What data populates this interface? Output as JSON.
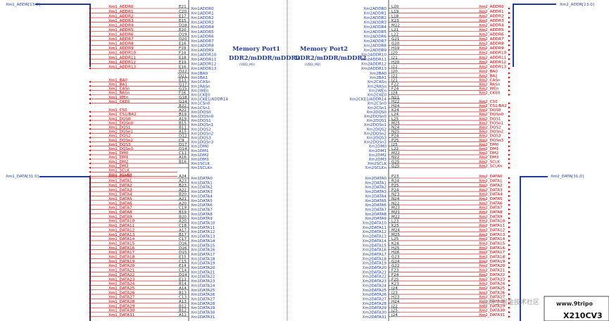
{
  "port1": {
    "title": "Memory Port1",
    "subtitle": "DDR2/mDDR/mDDR2",
    "supply": "(VDD_M1)",
    "addr_bus": "Xm1_ADDR[13:0]",
    "data_bus": "Xm1_DATA[31:0]",
    "addr": [
      {
        "net": "Xm1_ADDR0",
        "pin": "E21",
        "sig": "Xm1ADDR0"
      },
      {
        "net": "Xm1_ADDR1",
        "pin": "C20",
        "sig": "Xm1ADDR1"
      },
      {
        "net": "Xm1_ADDR2",
        "pin": "E17",
        "sig": "Xm1ADDR2"
      },
      {
        "net": "Xm1_ADDR3",
        "pin": "E15",
        "sig": "Xm1ADDR3"
      },
      {
        "net": "Xm1_ADDR4",
        "pin": "D18",
        "sig": "Xm1ADDR4"
      },
      {
        "net": "Xm1_ADDR5",
        "pin": "E20",
        "sig": "Xm1ADDR5"
      },
      {
        "net": "Xm1_ADDR6",
        "pin": "D19",
        "sig": "Xm1ADDR6"
      },
      {
        "net": "Xm1_ADDR7",
        "pin": "D20",
        "sig": "Xm1ADDR7"
      },
      {
        "net": "Xm1_ADDR8",
        "pin": "E16",
        "sig": "Xm1ADDR8"
      },
      {
        "net": "Xm1_ADDR9",
        "pin": "F19",
        "sig": "Xm1ADDR9"
      },
      {
        "net": "Xm1_ADDR10",
        "pin": "F14",
        "sig": "Xm1ADDR10"
      },
      {
        "net": "Xm1_ADDR11",
        "pin": "E18",
        "sig": "Xm1ADDR11"
      },
      {
        "net": "Xm1_ADDR12",
        "pin": "E19",
        "sig": "Xm1ADDR12"
      },
      {
        "net": "Xm1_ADDR13",
        "pin": "E16",
        "sig": "Xm1ADDR13"
      }
    ],
    "ctrl": [
      {
        "net": "",
        "pin": "D22",
        "sig": "Xm1BA0"
      },
      {
        "net": "",
        "pin": "D21",
        "sig": "Xm1BA1"
      },
      {
        "net": "Xm1_BA0",
        "pin": "E13",
        "sig": "Xm1CASn"
      },
      {
        "net": "Xm1_BA1",
        "pin": "G17",
        "sig": "Xm1RASn"
      },
      {
        "net": "Xm1_CASn",
        "pin": "G15",
        "sig": "Xm1WEn"
      },
      {
        "net": "Xm1_RASn",
        "pin": "F16",
        "sig": "Xm1CKE0"
      },
      {
        "net": "Xm1_WEn",
        "pin": "G18",
        "sig": "Xm1CKE1/ADDR14"
      },
      {
        "net": "Xm1_CKE0",
        "pin": "G14",
        "sig": "Xm1CSn0"
      },
      {
        "net": "",
        "pin": "B22",
        "sig": "Xm1CSn1"
      },
      {
        "net": "Xm1_CS0",
        "pin": "A22",
        "sig": "Xm1DQS0"
      },
      {
        "net": "Xm1_CS1/BA2",
        "pin": "B19",
        "sig": "Xm1DQSn0"
      },
      {
        "net": "Xm1_DQS0",
        "pin": "A19",
        "sig": "Xm1DQS1"
      },
      {
        "net": "Xm1_DQSn0",
        "pin": "B15",
        "sig": "Xm1DQSn1"
      },
      {
        "net": "Xm1_DQS1",
        "pin": "B11",
        "sig": "Xm1DQS2"
      },
      {
        "net": "Xm1_DQSn1",
        "pin": "A15",
        "sig": "Xm1DQSn2"
      },
      {
        "net": "Xm1_DQS2",
        "pin": "D12",
        "sig": "Xm1DQS3"
      },
      {
        "net": "Xm1_DQSn2",
        "pin": "C9",
        "sig": "Xm1DQSn3"
      },
      {
        "net": "Xm1_DQS3",
        "pin": "D17",
        "sig": "Xm1DM0"
      },
      {
        "net": "Xm1_DQSn3",
        "pin": "D14",
        "sig": "Xm1DM1"
      },
      {
        "net": "Xm1_DM0",
        "pin": "C11",
        "sig": "Xm1DM2"
      },
      {
        "net": "Xm1_DM1",
        "pin": "A16",
        "sig": "Xm1DM3"
      },
      {
        "net": "Xm1_DM2",
        "pin": "B16",
        "sig": "Xm1SCLK"
      },
      {
        "net": "Xm1_DM3",
        "pin": "",
        "sig": "Xm1SCLKn"
      },
      {
        "net": "Xm1_SCLK",
        "pin": "",
        "sig": ""
      },
      {
        "net": "Xm1_SCLKn",
        "pin": "",
        "sig": ""
      }
    ],
    "data": [
      {
        "net": "Xm1_DATA0",
        "pin": "A24",
        "sig": "Xm1DATA0"
      },
      {
        "net": "Xm1_DATA1",
        "pin": "A23",
        "sig": "Xm1DATA1"
      },
      {
        "net": "Xm1_DATA2",
        "pin": "B23",
        "sig": "Xm1DATA2"
      },
      {
        "net": "Xm1_DATA3",
        "pin": "A22",
        "sig": "Xm1DATA3"
      },
      {
        "net": "Xm1_DATA4",
        "pin": "B20",
        "sig": "Xm1DATA4"
      },
      {
        "net": "Xm1_DATA5",
        "pin": "A21",
        "sig": "Xm1DATA5"
      },
      {
        "net": "Xm1_DATA6",
        "pin": "A20",
        "sig": "Xm1DATA6"
      },
      {
        "net": "Xm1_DATA7",
        "pin": "C19",
        "sig": "Xm1DATA7"
      },
      {
        "net": "Xm1_DATA8",
        "pin": "B19",
        "sig": "Xm1DATA8"
      },
      {
        "net": "Xm1_DATA9",
        "pin": "B20",
        "sig": "Xm1DATA9"
      },
      {
        "net": "Xm1_DATA10",
        "pin": "A20",
        "sig": "Xm1DATA10"
      },
      {
        "net": "Xm1_DATA11",
        "pin": "C18",
        "sig": "Xm1DATA11"
      },
      {
        "net": "Xm1_DATA12",
        "pin": "A17",
        "sig": "Xm1DATA12"
      },
      {
        "net": "Xm1_DATA13",
        "pin": "B17",
        "sig": "Xm1DATA13"
      },
      {
        "net": "Xm1_DATA14",
        "pin": "C17",
        "sig": "Xm1DATA14"
      },
      {
        "net": "Xm1_DATA15",
        "pin": "D16",
        "sig": "Xm1DATA15"
      },
      {
        "net": "Xm1_DATA16",
        "pin": "D16",
        "sig": "Xm1DATA16"
      },
      {
        "net": "Xm1_DATA17",
        "pin": "D15",
        "sig": "Xm1DATA17"
      },
      {
        "net": "Xm1_DATA18",
        "pin": "E15",
        "sig": "Xm1DATA18"
      },
      {
        "net": "Xm1_DATA19",
        "pin": "C15",
        "sig": "Xm1DATA19"
      },
      {
        "net": "Xm1_DATA20",
        "pin": "E14",
        "sig": "Xm1DATA20"
      },
      {
        "net": "Xm1_DATA21",
        "pin": "C14",
        "sig": "Xm1DATA21"
      },
      {
        "net": "Xm1_DATA22",
        "pin": "D14",
        "sig": "Xm1DATA22"
      },
      {
        "net": "Xm1_DATA23",
        "pin": "E13",
        "sig": "Xm1DATA23"
      },
      {
        "net": "Xm1_DATA24",
        "pin": "B14",
        "sig": "Xm1DATA24"
      },
      {
        "net": "Xm1_DATA25",
        "pin": "A14",
        "sig": "Xm1DATA25"
      },
      {
        "net": "Xm1_DATA26",
        "pin": "B13",
        "sig": "Xm1DATA26"
      },
      {
        "net": "Xm1_DATA27",
        "pin": "C13",
        "sig": "Xm1DATA27"
      },
      {
        "net": "Xm1_DATA28",
        "pin": "A13",
        "sig": "Xm1DATA28"
      },
      {
        "net": "Xm1_DATA29",
        "pin": "B12",
        "sig": "Xm1DATA29"
      },
      {
        "net": "Xm1_DATA30",
        "pin": "B12",
        "sig": "Xm1DATA30"
      },
      {
        "net": "Xm1_DATA31",
        "pin": "A12",
        "sig": "Xm1DATA31"
      }
    ]
  },
  "port2": {
    "title": "Memory Port2",
    "subtitle": "DDR2/mDDR/mDDR2",
    "supply": "(VDD_M2)",
    "addr_bus": "Xm2_ADDR[13:0]",
    "data_bus": "Xm2_DATA[31:0]",
    "addr": [
      {
        "net": "Xm2_ADDR0",
        "pin": "L20",
        "sig": "Xm2ADDR0"
      },
      {
        "net": "Xm2_ADDR1",
        "pin": "L19",
        "sig": "Xm2ADDR1"
      },
      {
        "net": "Xm2_ADDR2",
        "pin": "L18",
        "sig": "Xm2ADDR2"
      },
      {
        "net": "Xm2_ADDR3",
        "pin": "K23",
        "sig": "Xm2ADDR3"
      },
      {
        "net": "Xm2_ADDR4",
        "pin": "M22",
        "sig": "Xm2ADDR4"
      },
      {
        "net": "Xm2_ADDR5",
        "pin": "L21",
        "sig": "Xm2ADDR5"
      },
      {
        "net": "Xm2_ADDR6",
        "pin": "L22",
        "sig": "Xm2ADDR6"
      },
      {
        "net": "Xm2_ADDR7",
        "pin": "G21",
        "sig": "Xm2ADDR7"
      },
      {
        "net": "Xm2_ADDR8",
        "pin": "G20",
        "sig": "Xm2ADDR8"
      },
      {
        "net": "Xm2_ADDR9",
        "pin": "H19",
        "sig": "Xm2ADDR9"
      },
      {
        "net": "Xm2_ADDR10",
        "pin": "J20",
        "sig": "Xm2ADDR10"
      },
      {
        "net": "Xm2_ADDR11",
        "pin": "J21",
        "sig": "Xm2ADDR11"
      },
      {
        "net": "Xm2_ADDR12",
        "pin": "H20",
        "sig": "Xm2ADDR12"
      },
      {
        "net": "Xm2_ADDR13",
        "pin": "J22",
        "sig": "Xm2ADDR13"
      }
    ],
    "ctrl": [
      {
        "net": "Xm2_BA0",
        "pin": "J20",
        "sig": "Xm2BA0"
      },
      {
        "net": "Xm2_BA1",
        "pin": "J22",
        "sig": "Xm2BA1"
      },
      {
        "net": "Xm2_CASn",
        "pin": "J21",
        "sig": "Xm2CASn"
      },
      {
        "net": "Xm2_RASn",
        "pin": "F22",
        "sig": "Xm2RASn"
      },
      {
        "net": "Xm2_WEn",
        "pin": "F24",
        "sig": "Xm2WEn"
      },
      {
        "net": "Xm2_CKE0",
        "pin": "J24",
        "sig": "Xm2CKE0"
      },
      {
        "net": "",
        "pin": "N21",
        "sig": "Xm2CKE1/ADDR14"
      },
      {
        "net": "Xm2_CS0",
        "pin": "H22",
        "sig": "Xm2CSn0"
      },
      {
        "net": "Xm2_CS1/BA2",
        "pin": "H24",
        "sig": "Xm2CSn1"
      },
      {
        "net": "Xm2_DQS0",
        "pin": "K24",
        "sig": "Xm2DQS0"
      },
      {
        "net": "Xm2_DQSn0",
        "pin": "L24",
        "sig": "Xm2DQSn0"
      },
      {
        "net": "Xm2_DQS1",
        "pin": "L25",
        "sig": "Xm2DQS1"
      },
      {
        "net": "Xm2_DQSn1",
        "pin": "M25",
        "sig": "Xm2DQSn1"
      },
      {
        "net": "Xm2_DQS2",
        "pin": "N24",
        "sig": "Xm2DQS2"
      },
      {
        "net": "Xm2_DQSn2",
        "pin": "N25",
        "sig": "Xm2DQSn2"
      },
      {
        "net": "Xm2_DQS3",
        "pin": "P24",
        "sig": "Xm2DQS3"
      },
      {
        "net": "Xm2_DQSn3",
        "pin": "P25",
        "sig": "Xm2DQSn3"
      },
      {
        "net": "Xm2_DM0",
        "pin": "J25",
        "sig": "Xm2DM0"
      },
      {
        "net": "Xm2_DM1",
        "pin": "L22",
        "sig": "Xm2DM1"
      },
      {
        "net": "Xm2_DM2",
        "pin": "M22",
        "sig": "Xm2DM2"
      },
      {
        "net": "Xm2_DM3",
        "pin": "N22",
        "sig": "Xm2DM3"
      },
      {
        "net": "Xm2_SCLK",
        "pin": "G25",
        "sig": "Xm2SCLK"
      },
      {
        "net": "Xm2_SCLKn",
        "pin": "G25",
        "sig": "Xm2SCLKn"
      }
    ],
    "data": [
      {
        "net": "Xm2_DATA0",
        "pin": "P23",
        "sig": "Xm2DATA0"
      },
      {
        "net": "Xm2_DATA1",
        "pin": "R24",
        "sig": "Xm2DATA1"
      },
      {
        "net": "Xm2_DATA2",
        "pin": "P25",
        "sig": "Xm2DATA2"
      },
      {
        "net": "Xm2_DATA3",
        "pin": "P24",
        "sig": "Xm2DATA3"
      },
      {
        "net": "Xm2_DATA4",
        "pin": "N23",
        "sig": "Xm2DATA4"
      },
      {
        "net": "Xm2_DATA5",
        "pin": "N24",
        "sig": "Xm2DATA5"
      },
      {
        "net": "Xm2_DATA6",
        "pin": "N22",
        "sig": "Xm2DATA6"
      },
      {
        "net": "Xm2_DATA7",
        "pin": "M23",
        "sig": "Xm2DATA7"
      },
      {
        "net": "Xm2_DATA8",
        "pin": "M21",
        "sig": "Xm2DATA8"
      },
      {
        "net": "Xm2_DATA9",
        "pin": "M22",
        "sig": "Xm2DATA9"
      },
      {
        "net": "Xm2_DATA10",
        "pin": "L23",
        "sig": "Xm2DATA10"
      },
      {
        "net": "Xm2_DATA11",
        "pin": "K25",
        "sig": "Xm2DATA11"
      },
      {
        "net": "Xm2_DATA12",
        "pin": "M24",
        "sig": "Xm2DATA12"
      },
      {
        "net": "Xm2_DATA13",
        "pin": "M25",
        "sig": "Xm2DATA13"
      },
      {
        "net": "Xm2_DATA14",
        "pin": "L25",
        "sig": "Xm2DATA14"
      },
      {
        "net": "Xm2_DATA15",
        "pin": "K24",
        "sig": "Xm2DATA15"
      },
      {
        "net": "Xm2_DATA16",
        "pin": "H25",
        "sig": "Xm2DATA16"
      },
      {
        "net": "Xm2_DATA17",
        "pin": "H26",
        "sig": "Xm2DATA17"
      },
      {
        "net": "Xm2_DATA18",
        "pin": "G23",
        "sig": "Xm2DATA18"
      },
      {
        "net": "Xm2_DATA19",
        "pin": "G24",
        "sig": "Xm2DATA19"
      },
      {
        "net": "Xm2_DATA20",
        "pin": "G22",
        "sig": "Xm2DATA20"
      },
      {
        "net": "Xm2_DATA21",
        "pin": "F23",
        "sig": "Xm2DATA21"
      },
      {
        "net": "Xm2_DATA22",
        "pin": "F24",
        "sig": "Xm2DATA22"
      },
      {
        "net": "Xm2_DATA23",
        "pin": "F25",
        "sig": "Xm2DATA23"
      },
      {
        "net": "Xm2_DATA24",
        "pin": "K23",
        "sig": "Xm2DATA24"
      },
      {
        "net": "Xm2_DATA25",
        "pin": "J24",
        "sig": "Xm2DATA25"
      },
      {
        "net": "Xm2_DATA26",
        "pin": "J23",
        "sig": "Xm2DATA26"
      },
      {
        "net": "Xm2_DATA27",
        "pin": "H23",
        "sig": "Xm2DATA27"
      },
      {
        "net": "Xm2_DATA28",
        "pin": "H24",
        "sig": "Xm2DATA28"
      },
      {
        "net": "Xm2_DATA29",
        "pin": "J22",
        "sig": "Xm2DATA29"
      },
      {
        "net": "Xm2_DATA30",
        "pin": "J25",
        "sig": "Xm2DATA30"
      },
      {
        "net": "Xm2_DATA31",
        "pin": "J24",
        "sig": "Xm2DATA31"
      }
    ]
  },
  "part_number": "X210CV3",
  "corner_text": "www.9tripo",
  "watermark": "@稀土掘金技术社区",
  "colors": {
    "net": "#c00000",
    "bus": "#1f3c9e",
    "pin": "#222222",
    "wire": "#c00000"
  }
}
